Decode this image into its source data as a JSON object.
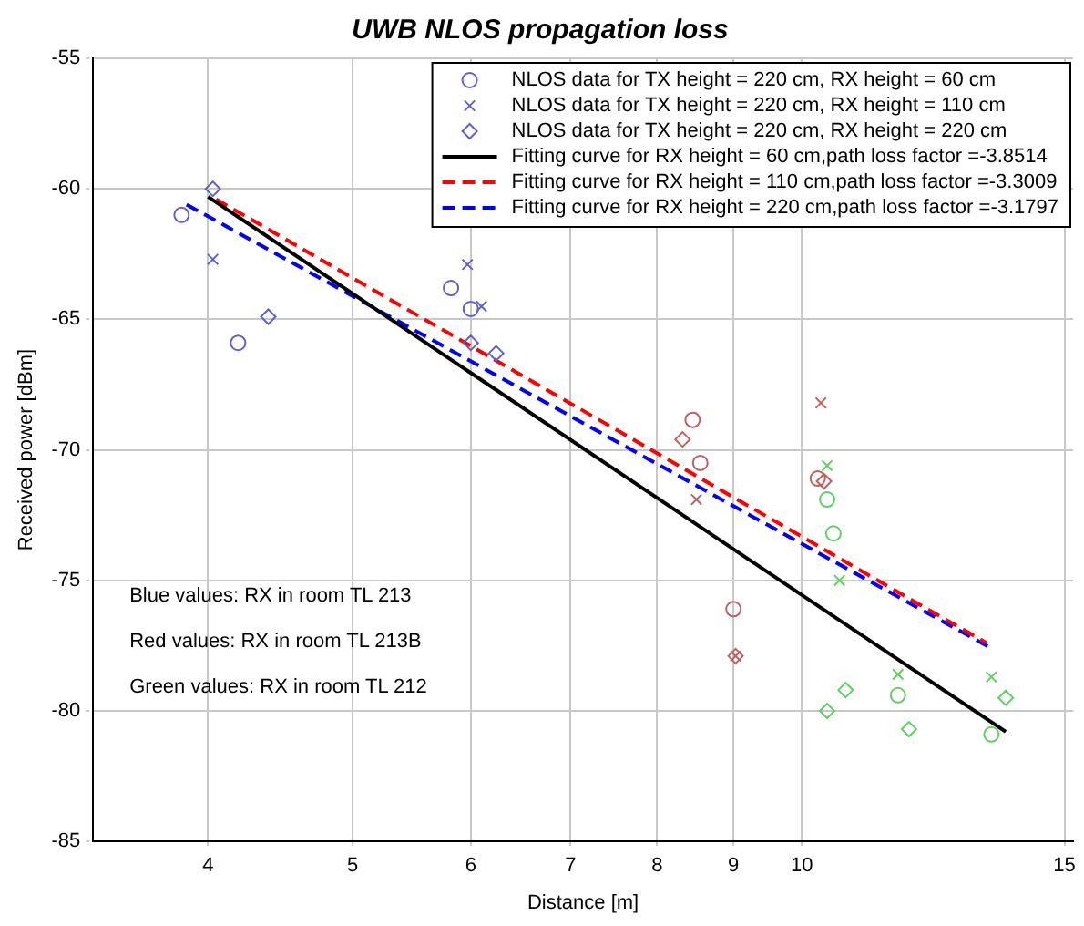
{
  "chart_data": {
    "type": "scatter",
    "title": "UWB NLOS propagation loss",
    "xlabel": "Distance [m]",
    "ylabel": "Received power [dBm]",
    "log": "x",
    "xlim": [
      3.35,
      15.2
    ],
    "xticks": [
      4,
      5,
      6,
      7,
      8,
      9,
      10,
      15
    ],
    "ylim": [
      -85,
      -55
    ],
    "yticks": [
      -85,
      -80,
      -75,
      -70,
      -65,
      -60,
      -55
    ],
    "grid": true,
    "legend": "top right",
    "series": [
      {
        "name": "NLOS data for TX height = 220 cm, RX height = 60 cm",
        "marker": "circle",
        "color": "#6060d0",
        "x": [
          3.84,
          4.19,
          5.82,
          6.0,
          8.45,
          8.55,
          9.0,
          10.25,
          10.4,
          10.5,
          11.6,
          13.4
        ],
        "values": [
          -61.0,
          -65.9,
          -63.8,
          -64.6,
          -68.85,
          -70.5,
          -76.1,
          -71.1,
          -71.9,
          -73.2,
          -79.4,
          -80.9
        ],
        "colors": [
          "#6060d0",
          "#6060d0",
          "#6060d0",
          "#6060d0",
          "#c06060",
          "#c06060",
          "#c06060",
          "#c06060",
          "#60d060",
          "#60d060",
          "#60d060",
          "#60d060"
        ]
      },
      {
        "name": "NLOS data for TX height = 220 cm, RX height = 110 cm",
        "marker": "cross",
        "color": "#6060d0",
        "x": [
          4.03,
          5.97,
          6.1,
          8.5,
          9.03,
          10.3,
          10.4,
          10.6,
          11.6,
          13.4
        ],
        "values": [
          -62.7,
          -62.9,
          -64.5,
          -71.9,
          -77.9,
          -68.2,
          -70.6,
          -75.0,
          -78.6,
          -78.7
        ],
        "colors": [
          "#6060d0",
          "#6060d0",
          "#6060d0",
          "#c06060",
          "#c06060",
          "#c06060",
          "#60d060",
          "#60d060",
          "#60d060",
          "#60d060"
        ]
      },
      {
        "name": "NLOS data for TX height = 220 cm, RX height = 220 cm",
        "marker": "diamond",
        "color": "#6060d0",
        "x": [
          4.03,
          4.39,
          6.0,
          6.24,
          8.32,
          9.03,
          10.35,
          10.7,
          10.4,
          11.8,
          13.7
        ],
        "values": [
          -60.0,
          -64.9,
          -65.9,
          -66.3,
          -69.6,
          -77.9,
          -71.2,
          -79.2,
          -80.0,
          -80.7,
          -79.5
        ],
        "colors": [
          "#6060d0",
          "#6060d0",
          "#6060d0",
          "#6060d0",
          "#c06060",
          "#c06060",
          "#c06060",
          "#60d060",
          "#60d060",
          "#60d060",
          "#60d060"
        ]
      },
      {
        "name": "Fitting curve for RX height = 60 cm,path loss factor =-3.8514",
        "type": "line",
        "line_style": "solid",
        "marker": "none",
        "color": "#000000",
        "x": [
          4.0,
          13.7
        ],
        "values": [
          -60.3,
          -80.8
        ]
      },
      {
        "name": "Fitting curve for RX height = 110 cm,path loss factor =-3.3009",
        "type": "line",
        "line_style": "dashed",
        "marker": "none",
        "color": "#ff0000",
        "x": [
          4.05,
          13.3
        ],
        "values": [
          -60.4,
          -77.4
        ]
      },
      {
        "name": "Fitting curve for RX height = 220 cm,path loss factor =-3.1797",
        "type": "line",
        "line_style": "dashed",
        "marker": "none",
        "color": "#0000ff",
        "x": [
          3.87,
          13.4
        ],
        "values": [
          -60.6,
          -77.6
        ]
      }
    ],
    "annotations": [
      "Blue values: RX in room TL 213",
      "Red values: RX in room TL 213B",
      "Green values: RX in room TL 212"
    ]
  }
}
